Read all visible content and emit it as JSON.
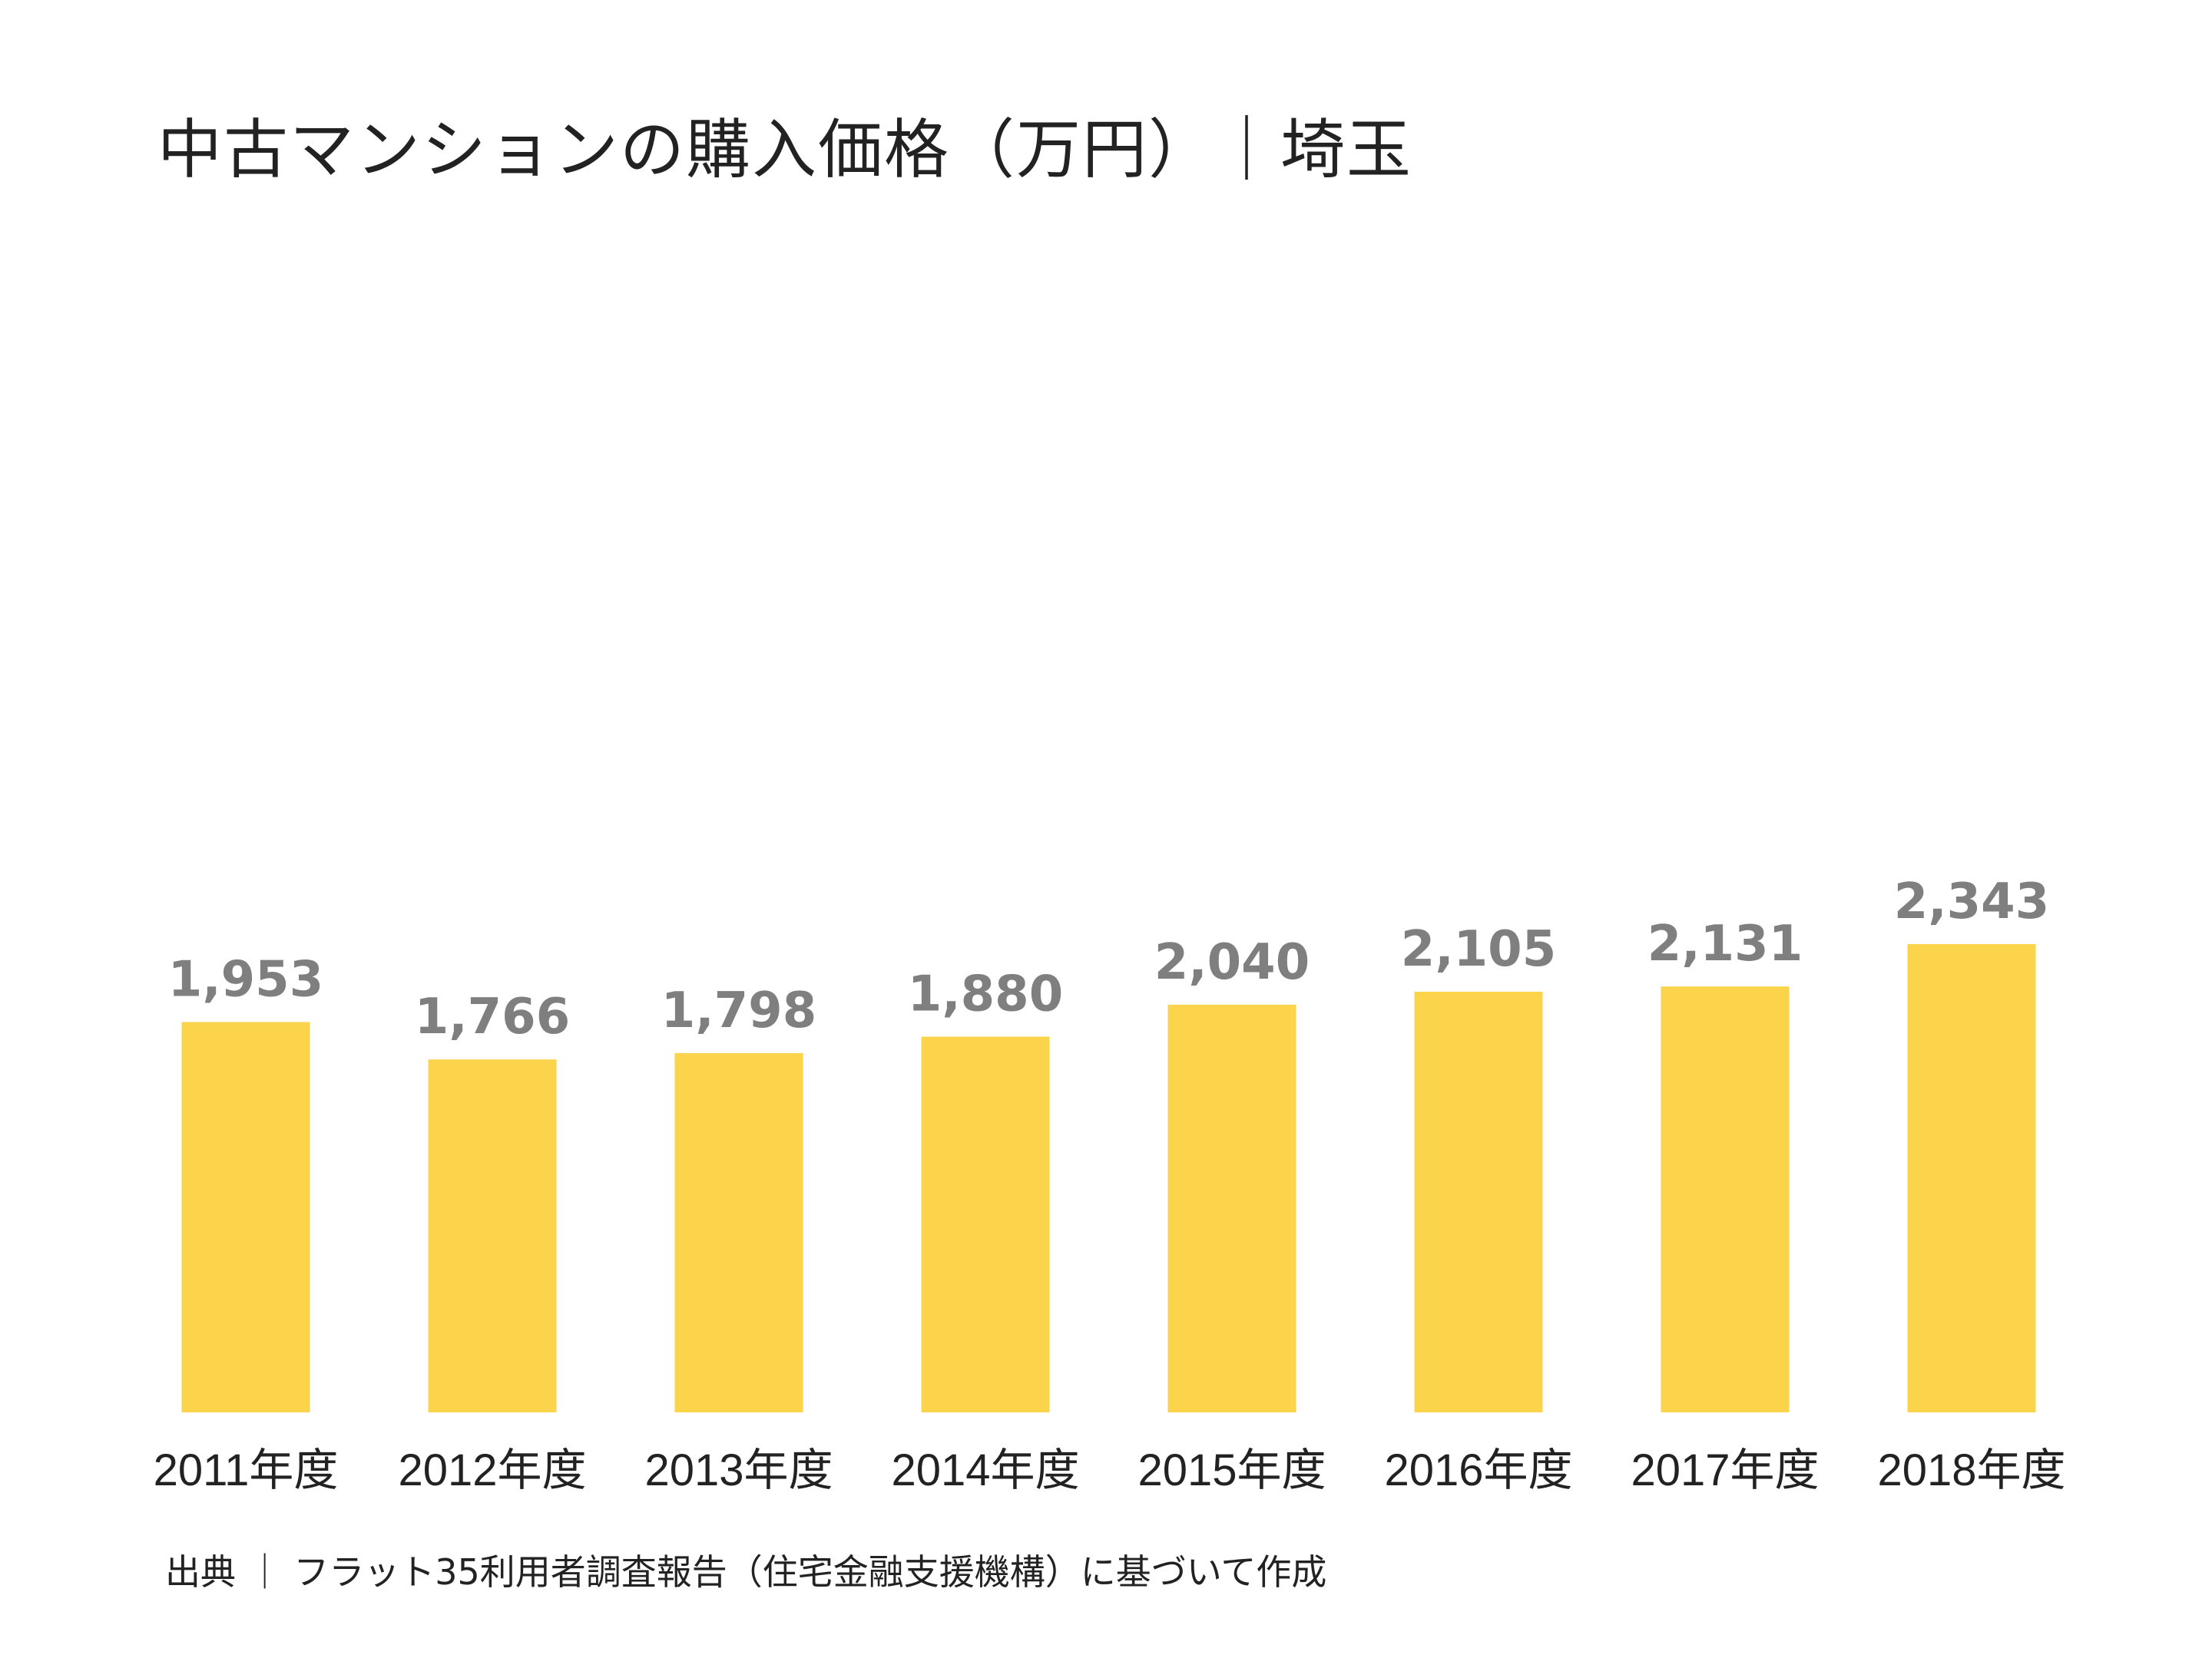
{
  "title": "中古マンションの購入価格（万円）｜埼玉",
  "source": "出典 ｜ フラット35利用者調査報告（住宅金融支援機構）に基づいて作成",
  "chart_data": {
    "type": "bar",
    "title": "中古マンションの購入価格（万円）｜埼玉",
    "categories": [
      "2011年度",
      "2012年度",
      "2013年度",
      "2014年度",
      "2015年度",
      "2016年度",
      "2017年度",
      "2018年度"
    ],
    "values": [
      1953,
      1766,
      1798,
      1880,
      2040,
      2105,
      2131,
      2343
    ],
    "value_labels": [
      "1,953",
      "1,766",
      "1,798",
      "1,880",
      "2,040",
      "2,105",
      "2,131",
      "2,343"
    ],
    "xlabel": "",
    "ylabel": "",
    "ylim": [
      0,
      2343
    ],
    "grid": false,
    "bar_color": "#FBD44C",
    "value_label_color": "#7f7f7f"
  }
}
